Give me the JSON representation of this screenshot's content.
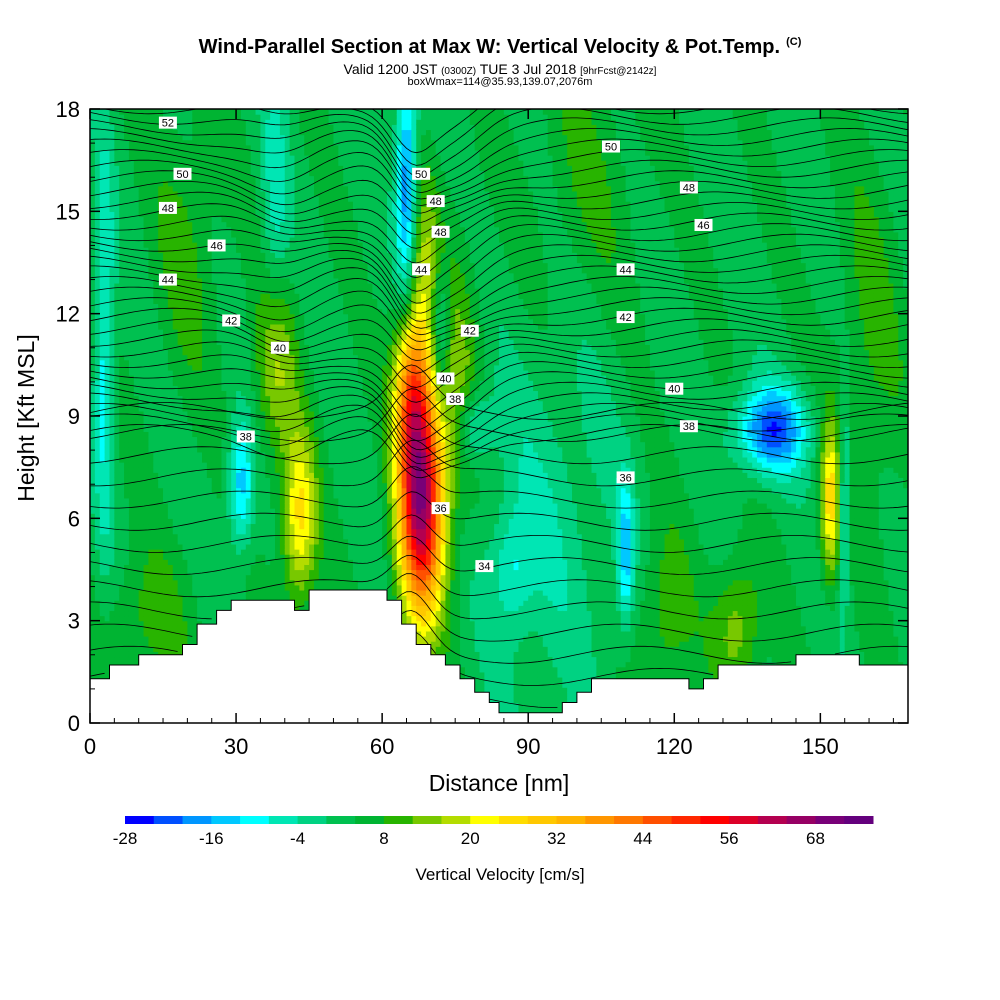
{
  "title": {
    "main": "Wind-Parallel Section at Max W: Vertical Velocity & Pot.Temp.",
    "copyright": "(C)",
    "valid_prefix": "Valid 1200 JST",
    "valid_utc": "(0300Z)",
    "valid_date": "TUE 3 Jul 2018",
    "forecast": "[9hrFcst@2142z]",
    "boxwmax": "boxWmax=114@35.93,139.07,2076m"
  },
  "chart_data": {
    "type": "heatmap",
    "xlabel": "Distance [nm]",
    "ylabel": "Height [Kft MSL]",
    "xlim": [
      0,
      168
    ],
    "ylim": [
      0,
      18
    ],
    "x_ticks": [
      0,
      30,
      60,
      90,
      120,
      150
    ],
    "y_ticks": [
      0,
      3,
      6,
      9,
      12,
      15,
      18
    ],
    "colorbar": {
      "label": "Vertical Velocity [cm/s]",
      "tick_labels": [
        -28,
        -16,
        -4,
        8,
        20,
        32,
        44,
        56,
        68
      ],
      "min": -28,
      "step": 4,
      "colors": [
        "#0000ff",
        "#0050ff",
        "#0096ff",
        "#00c8ff",
        "#00ffff",
        "#00e6b4",
        "#00d282",
        "#00c050",
        "#00b432",
        "#28b400",
        "#78c800",
        "#b4dc00",
        "#ffff00",
        "#ffdc00",
        "#ffc800",
        "#ffb400",
        "#ff9600",
        "#ff7800",
        "#ff5000",
        "#ff2800",
        "#ff0000",
        "#dc0028",
        "#b40050",
        "#960064",
        "#780078",
        "#64007d"
      ]
    },
    "terrain": [
      [
        0,
        1.3
      ],
      [
        4,
        1.3
      ],
      [
        4,
        1.7
      ],
      [
        10,
        1.7
      ],
      [
        10,
        2
      ],
      [
        19,
        2
      ],
      [
        19,
        2.3
      ],
      [
        22,
        2.3
      ],
      [
        22,
        2.9
      ],
      [
        26,
        2.9
      ],
      [
        26,
        3.3
      ],
      [
        29,
        3.3
      ],
      [
        29,
        3.6
      ],
      [
        42,
        3.6
      ],
      [
        42,
        3.3
      ],
      [
        45,
        3.3
      ],
      [
        45,
        3.9
      ],
      [
        61,
        3.9
      ],
      [
        61,
        3.6
      ],
      [
        64,
        3.6
      ],
      [
        64,
        2.9
      ],
      [
        67,
        2.9
      ],
      [
        67,
        2.3
      ],
      [
        70,
        2.3
      ],
      [
        70,
        2
      ],
      [
        73,
        2
      ],
      [
        73,
        1.7
      ],
      [
        76,
        1.7
      ],
      [
        76,
        1.3
      ],
      [
        79,
        1.3
      ],
      [
        79,
        0.9
      ],
      [
        82,
        0.9
      ],
      [
        82,
        0.6
      ],
      [
        84,
        0.6
      ],
      [
        84,
        0.3
      ],
      [
        97,
        0.3
      ],
      [
        97,
        0.6
      ],
      [
        100,
        0.6
      ],
      [
        100,
        0.9
      ],
      [
        103,
        0.9
      ],
      [
        103,
        1.3
      ],
      [
        123,
        1.3
      ],
      [
        123,
        1
      ],
      [
        126,
        1
      ],
      [
        126,
        1.3
      ],
      [
        129,
        1.3
      ],
      [
        129,
        1.7
      ],
      [
        145,
        1.7
      ],
      [
        145,
        2
      ],
      [
        158,
        2
      ],
      [
        158,
        1.7
      ],
      [
        168,
        1.7
      ]
    ],
    "w_features": [
      {
        "x": 68,
        "z": 6.5,
        "sx": 3.2,
        "sz": 2.4,
        "w": 62
      },
      {
        "x": 66,
        "z": 9.8,
        "sx": 2.4,
        "sz": 1.6,
        "w": 30
      },
      {
        "x": 43,
        "z": 6.0,
        "sx": 2.5,
        "sz": 1.8,
        "w": 22
      },
      {
        "x": 38,
        "z": 10.5,
        "sx": 3.0,
        "sz": 2.0,
        "w": 14
      },
      {
        "x": 152,
        "z": 6.5,
        "sx": 1.4,
        "sz": 1.6,
        "w": 22
      },
      {
        "x": 133,
        "z": 2.8,
        "sx": 3.5,
        "sz": 1.4,
        "w": 12
      },
      {
        "x": 75,
        "z": 10.0,
        "sx": 4.0,
        "sz": 3.0,
        "w": 10
      },
      {
        "x": 68,
        "z": 13.5,
        "sx": 3.0,
        "sz": 2.0,
        "w": 12
      },
      {
        "x": 140,
        "z": 8.6,
        "sx": 5.0,
        "sz": 0.9,
        "w": -26
      },
      {
        "x": 65,
        "z": 15.5,
        "sx": 1.6,
        "sz": 2.5,
        "w": -26
      },
      {
        "x": 72,
        "z": 11.5,
        "sx": 1.5,
        "sz": 1.5,
        "w": -16
      },
      {
        "x": 79,
        "z": 8.7,
        "sx": 2.5,
        "sz": 0.8,
        "w": -12
      },
      {
        "x": 31,
        "z": 7.0,
        "sx": 1.8,
        "sz": 1.3,
        "w": -18
      },
      {
        "x": 3,
        "z": 11.0,
        "sx": 1.4,
        "sz": 4.0,
        "w": -14
      },
      {
        "x": 110,
        "z": 5.0,
        "sx": 1.2,
        "sz": 1.5,
        "w": -16
      },
      {
        "x": 155,
        "z": 6.5,
        "sx": 0.9,
        "sz": 2.0,
        "w": -14
      },
      {
        "x": 87,
        "z": 4.5,
        "sx": 3.0,
        "sz": 1.2,
        "w": -9
      },
      {
        "x": 38,
        "z": 15.0,
        "sx": 2.0,
        "sz": 3.0,
        "w": -9
      },
      {
        "x": 94,
        "z": 6.0,
        "sx": 10.0,
        "sz": 4.0,
        "w": -6
      },
      {
        "x": 20,
        "z": 14.0,
        "sx": 5.0,
        "sz": 3.0,
        "w": 6
      },
      {
        "x": 12,
        "z": 3.0,
        "sx": 6.0,
        "sz": 1.5,
        "w": 7
      },
      {
        "x": 118,
        "z": 3.0,
        "sx": 4.0,
        "sz": 2.0,
        "w": 8
      },
      {
        "x": 102,
        "z": 16.0,
        "sx": 8.0,
        "sz": 3.0,
        "w": 5
      },
      {
        "x": 160,
        "z": 11.0,
        "sx": 5.0,
        "sz": 4.0,
        "w": 6
      }
    ],
    "theta_labels": [
      {
        "x": 16,
        "z": 17.6,
        "text": "52"
      },
      {
        "x": 19,
        "z": 16.1,
        "text": "50"
      },
      {
        "x": 16,
        "z": 15.1,
        "text": "48"
      },
      {
        "x": 26,
        "z": 14.0,
        "text": "46"
      },
      {
        "x": 16,
        "z": 13.0,
        "text": "44"
      },
      {
        "x": 29,
        "z": 11.8,
        "text": "42"
      },
      {
        "x": 39,
        "z": 11.0,
        "text": "40"
      },
      {
        "x": 32,
        "z": 8.4,
        "text": "38"
      },
      {
        "x": 68,
        "z": 16.1,
        "text": "50"
      },
      {
        "x": 71,
        "z": 15.3,
        "text": "48"
      },
      {
        "x": 72,
        "z": 14.4,
        "text": "48"
      },
      {
        "x": 68,
        "z": 13.3,
        "text": "44"
      },
      {
        "x": 78,
        "z": 11.5,
        "text": "42"
      },
      {
        "x": 73,
        "z": 10.1,
        "text": "40"
      },
      {
        "x": 75,
        "z": 9.5,
        "text": "38"
      },
      {
        "x": 72,
        "z": 6.3,
        "text": "36"
      },
      {
        "x": 81,
        "z": 4.6,
        "text": "34"
      },
      {
        "x": 107,
        "z": 16.9,
        "text": "50"
      },
      {
        "x": 123,
        "z": 15.7,
        "text": "48"
      },
      {
        "x": 126,
        "z": 14.6,
        "text": "46"
      },
      {
        "x": 110,
        "z": 13.3,
        "text": "44"
      },
      {
        "x": 110,
        "z": 11.9,
        "text": "42"
      },
      {
        "x": 120,
        "z": 9.8,
        "text": "40"
      },
      {
        "x": 123,
        "z": 8.7,
        "text": "38"
      },
      {
        "x": 110,
        "z": 7.2,
        "text": "36"
      }
    ]
  }
}
